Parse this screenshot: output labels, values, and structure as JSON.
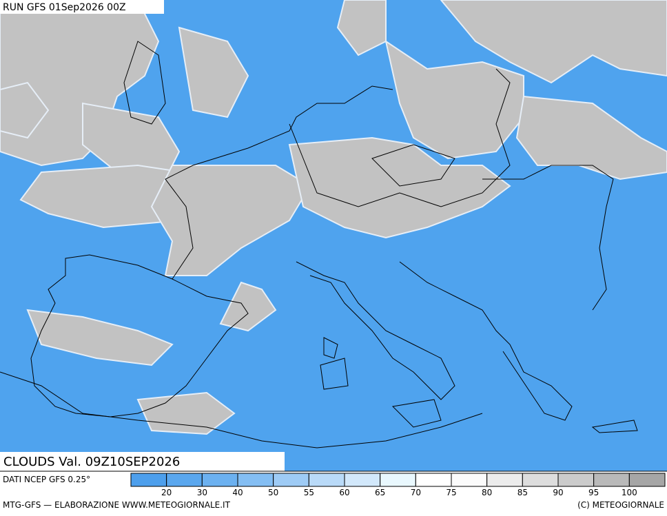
{
  "header": {
    "run": "RUN GFS 01Sep2026 00Z"
  },
  "map": {
    "title": "CLOUDS Val. 09Z10SEP2026"
  },
  "footer": {
    "source": "DATI NCEP GFS 0.25°",
    "credit": "MTG-GFS — ELABORAZIONE WWW.METEOGIORNALE.IT",
    "copyright": "(C) METEOGIORNALE"
  },
  "legend": {
    "colors": [
      "#4d9fec",
      "#5aa7ee",
      "#6cb1f0",
      "#84bef3",
      "#9ecbf5",
      "#b9daf8",
      "#d2e8fb",
      "#e9f8fe",
      "#ffffff",
      "#fbfbfb",
      "#ececec",
      "#dddddd",
      "#cbcbcb",
      "#b9b9b9",
      "#a6a6a6"
    ],
    "labels": [
      20,
      30,
      40,
      50,
      55,
      60,
      65,
      70,
      75,
      80,
      85,
      90,
      95,
      100
    ]
  }
}
